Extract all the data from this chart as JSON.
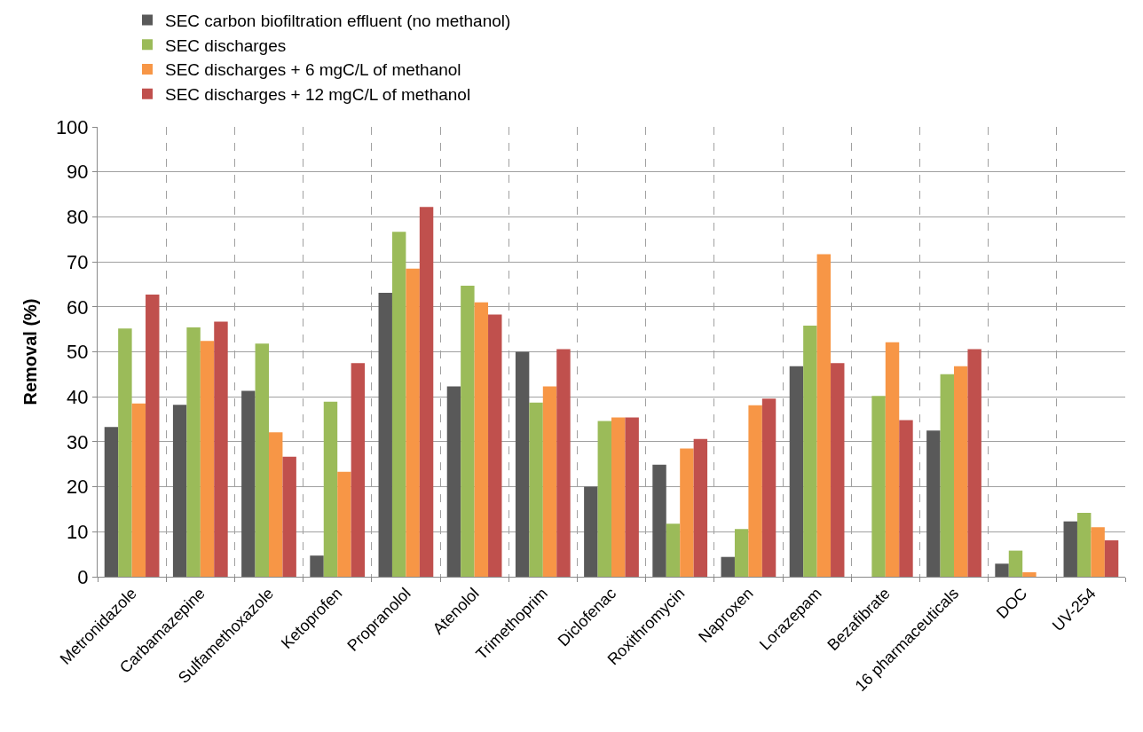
{
  "chart_data": {
    "type": "bar",
    "ylabel": "Removal (%)",
    "categories": [
      "Metronidazole",
      "Carbamazepine",
      "Sulfamethoxazole",
      "Ketoprofen",
      "Propranolol",
      "Atenolol",
      "Trimethoprim",
      "Diclofenac",
      "Roxithromycin",
      "Naproxen",
      "Lorazepam",
      "Bezafibrate",
      "16 pharmaceuticals",
      "DOC",
      "UV-254"
    ],
    "series": [
      {
        "name": "SEC carbon biofiltration effluent (no methanol)",
        "color": "#595959",
        "values": [
          33.3,
          38.2,
          41.3,
          4.7,
          63.1,
          42.3,
          50.0,
          20.0,
          24.9,
          4.4,
          46.8,
          null,
          32.5,
          2.9,
          12.3
        ]
      },
      {
        "name": "SEC discharges",
        "color": "#9bbb59",
        "values": [
          55.2,
          55.4,
          51.8,
          38.9,
          76.7,
          64.7,
          38.7,
          34.6,
          11.8,
          10.6,
          55.8,
          40.2,
          45.0,
          5.8,
          14.2
        ]
      },
      {
        "name": "SEC discharges + 6 mgC/L of methanol",
        "color": "#f79646",
        "values": [
          38.5,
          52.4,
          32.1,
          23.3,
          68.5,
          61.0,
          42.3,
          35.4,
          28.5,
          38.1,
          71.7,
          52.1,
          46.8,
          1.0,
          11.0
        ]
      },
      {
        "name": "SEC discharges + 12 mgC/L of methanol",
        "color": "#c0504d",
        "values": [
          62.7,
          56.7,
          26.7,
          47.5,
          82.2,
          58.3,
          50.6,
          35.4,
          30.6,
          39.6,
          47.5,
          34.8,
          50.6,
          null,
          8.1
        ]
      }
    ],
    "ylim": [
      0,
      100
    ],
    "yticks": [
      0,
      10,
      20,
      30,
      40,
      50,
      60,
      70,
      80,
      90,
      100
    ],
    "grid": true,
    "legend": "top"
  }
}
